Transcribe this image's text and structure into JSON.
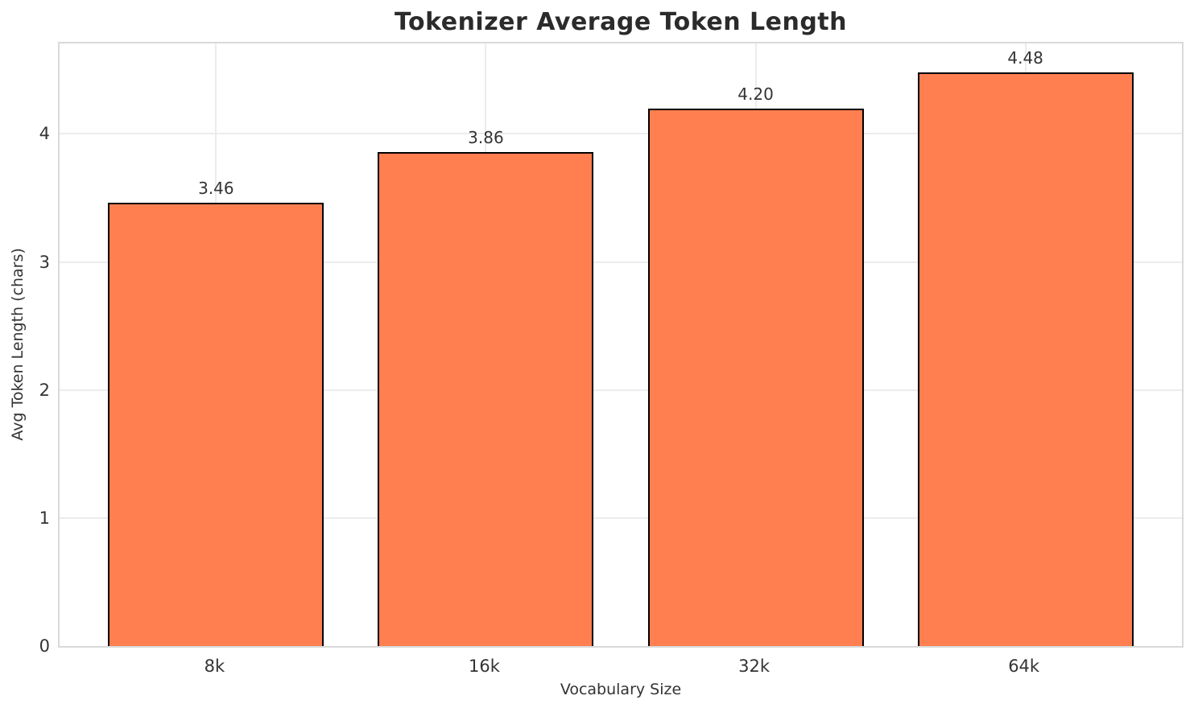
{
  "chart_data": {
    "type": "bar",
    "title": "Tokenizer Average Token Length",
    "xlabel": "Vocabulary Size",
    "ylabel": "Avg Token Length (chars)",
    "categories": [
      "8k",
      "16k",
      "32k",
      "64k"
    ],
    "values": [
      3.46,
      3.86,
      4.2,
      4.48
    ],
    "value_labels": [
      "3.46",
      "3.86",
      "4.20",
      "4.48"
    ],
    "yticks": [
      0,
      1,
      2,
      3,
      4
    ],
    "ylim": [
      0,
      4.706
    ],
    "grid": true,
    "legend_position": "none",
    "colors": {
      "bar_fill": "#FF7F50",
      "bar_edge": "#000000",
      "grid_line": "#ececec",
      "spine": "#d9d9d9",
      "title_text": "#2b2b2b",
      "tick_text": "#333333"
    }
  }
}
